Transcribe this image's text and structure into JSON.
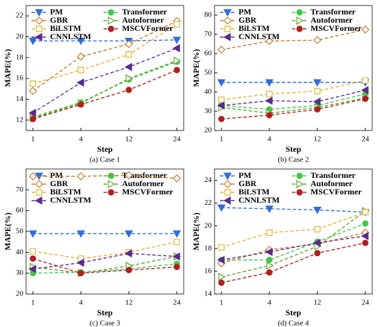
{
  "chart_data": [
    {
      "type": "line",
      "caption": "(a) Case 1",
      "xlabel": "Step",
      "ylabel": "MAPE(%)",
      "categories": [
        "1",
        "4",
        "12",
        "24"
      ],
      "ylim": [
        11,
        23
      ],
      "yticks": [
        12,
        14,
        16,
        18,
        20,
        22
      ],
      "series": [
        {
          "name": "PM",
          "color": "#2f6fd6",
          "marker": "triangle-down",
          "values": [
            19.6,
            19.6,
            19.6,
            19.7
          ]
        },
        {
          "name": "Transformer",
          "color": "#3fc94a",
          "marker": "circle",
          "values": [
            12.3,
            13.7,
            15.9,
            17.6
          ]
        },
        {
          "name": "GBR",
          "color": "#c8782a",
          "marker": "diamond",
          "values": [
            14.8,
            18.1,
            19.3,
            21.5
          ]
        },
        {
          "name": "Autoformer",
          "color": "#5da52a",
          "marker": "triangle-right",
          "values": [
            12.2,
            13.6,
            16.0,
            17.7
          ]
        },
        {
          "name": "BiLSTM",
          "color": "#e2b42e",
          "marker": "square",
          "values": [
            15.5,
            16.8,
            18.3,
            21.2
          ]
        },
        {
          "name": "MSCVFormer",
          "color": "#b02020",
          "marker": "circle",
          "values": [
            12.1,
            13.5,
            14.9,
            16.8
          ]
        },
        {
          "name": "CNNLSTM",
          "color": "#5b2a8c",
          "marker": "triangle-left",
          "values": [
            12.7,
            15.6,
            17.1,
            18.9
          ]
        }
      ]
    },
    {
      "type": "line",
      "caption": "(b) Case 2",
      "xlabel": "Step",
      "ylabel": "MAPE(%)",
      "categories": [
        "1",
        "4",
        "12",
        "24"
      ],
      "ylim": [
        20,
        85
      ],
      "yticks": [
        20,
        30,
        40,
        50,
        60,
        70,
        80
      ],
      "series": [
        {
          "name": "PM",
          "color": "#2f6fd6",
          "marker": "triangle-down",
          "values": [
            45,
            45,
            45,
            45
          ]
        },
        {
          "name": "Transformer",
          "color": "#3fc94a",
          "marker": "circle",
          "values": [
            33,
            31,
            33,
            39
          ]
        },
        {
          "name": "GBR",
          "color": "#c8782a",
          "marker": "diamond",
          "values": [
            62,
            66.5,
            67,
            72.5
          ]
        },
        {
          "name": "Autoformer",
          "color": "#5da52a",
          "marker": "triangle-right",
          "values": [
            32,
            29,
            32,
            37
          ]
        },
        {
          "name": "BiLSTM",
          "color": "#e2b42e",
          "marker": "square",
          "values": [
            36,
            39,
            40.5,
            46
          ]
        },
        {
          "name": "MSCVFormer",
          "color": "#b02020",
          "marker": "circle",
          "values": [
            26,
            28,
            31,
            36.5
          ]
        },
        {
          "name": "CNNLSTM",
          "color": "#5b2a8c",
          "marker": "triangle-left",
          "values": [
            33,
            35.5,
            35,
            41
          ]
        }
      ]
    },
    {
      "type": "line",
      "caption": "(c) Case 3",
      "xlabel": "Step",
      "ylabel": "MAPE(%)",
      "categories": [
        "1",
        "4",
        "12",
        "24"
      ],
      "ylim": [
        20,
        80
      ],
      "yticks": [
        20,
        30,
        40,
        50,
        60,
        70
      ],
      "series": [
        {
          "name": "PM",
          "color": "#2f6fd6",
          "marker": "triangle-down",
          "values": [
            49,
            49,
            49,
            49
          ]
        },
        {
          "name": "Transformer",
          "color": "#3fc94a",
          "marker": "circle",
          "values": [
            30,
            30.5,
            32,
            34.5
          ]
        },
        {
          "name": "GBR",
          "color": "#c8782a",
          "marker": "diamond",
          "values": [
            76.5,
            76.5,
            77,
            75.5
          ]
        },
        {
          "name": "Autoformer",
          "color": "#5da52a",
          "marker": "triangle-right",
          "values": [
            33,
            30,
            33.5,
            38
          ]
        },
        {
          "name": "BiLSTM",
          "color": "#e2b42e",
          "marker": "square",
          "values": [
            40.5,
            37,
            40,
            45
          ]
        },
        {
          "name": "MSCVFormer",
          "color": "#b02020",
          "marker": "circle",
          "values": [
            37,
            30,
            31.5,
            33
          ]
        },
        {
          "name": "CNNLSTM",
          "color": "#5b2a8c",
          "marker": "triangle-left",
          "values": [
            32,
            35,
            39.5,
            38
          ]
        }
      ]
    },
    {
      "type": "line",
      "caption": "(d) Case 4",
      "xlabel": "Step",
      "ylabel": "MAPE(%)",
      "categories": [
        "1",
        "4",
        "12",
        "24"
      ],
      "ylim": [
        14,
        25
      ],
      "yticks": [
        14,
        16,
        18,
        20,
        22,
        24
      ],
      "series": [
        {
          "name": "PM",
          "color": "#2f6fd6",
          "marker": "triangle-down",
          "values": [
            21.6,
            21.5,
            21.4,
            21.2
          ]
        },
        {
          "name": "Transformer",
          "color": "#3fc94a",
          "marker": "circle",
          "values": [
            17.0,
            17.0,
            18.6,
            20.2
          ]
        },
        {
          "name": "GBR",
          "color": "#c8782a",
          "marker": "diamond",
          "values": [
            16.7,
            17.9,
            18.4,
            19.4
          ]
        },
        {
          "name": "Autoformer",
          "color": "#5da52a",
          "marker": "triangle-right",
          "values": [
            15.5,
            16.5,
            18.2,
            21.3
          ]
        },
        {
          "name": "BiLSTM",
          "color": "#e2b42e",
          "marker": "square",
          "values": [
            18.1,
            19.4,
            19.7,
            21.2
          ]
        },
        {
          "name": "MSCVFormer",
          "color": "#b02020",
          "marker": "circle",
          "values": [
            15.0,
            15.9,
            17.6,
            18.5
          ]
        },
        {
          "name": "CNNLSTM",
          "color": "#5b2a8c",
          "marker": "triangle-left",
          "values": [
            17.0,
            17.7,
            18.5,
            19.1
          ]
        }
      ]
    }
  ]
}
